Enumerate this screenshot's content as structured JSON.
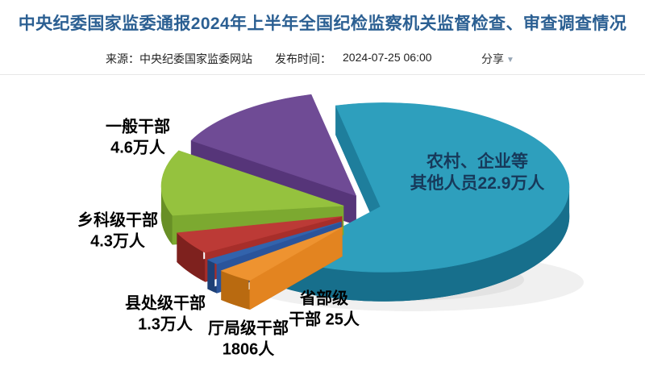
{
  "page": {
    "background": "#ffffff",
    "divider_color": "#e7e7e7"
  },
  "header": {
    "title": "中央纪委国家监委通报2024年上半年全国纪检监察机关监督检查、审查调查情况",
    "title_color": "#2b5f92",
    "meta": {
      "source": "来源：中央纪委国家监委网站",
      "publish_label": "发布时间：",
      "publish_time": "2024-07-25 06:00",
      "share_label": "分享",
      "share_caret": "▼"
    }
  },
  "chart_data": {
    "type": "pie",
    "style": "3d-exploded",
    "title": "",
    "unit": "人",
    "legend_position": "none",
    "labels_on_chart": true,
    "slices": [
      {
        "name": "农村、企业等其他人员",
        "value": 229000,
        "display_value": "22.9万人",
        "label_line1": "农村、企业等",
        "label_line2": "其他人员22.9万人",
        "label_color": "#17395a",
        "color": "#2E9FBD",
        "color_wall": "#1E7E9C",
        "color_dark": "#176F8C",
        "start_angle": 237,
        "end_angle": 465,
        "explode": 6
      },
      {
        "name": "一般干部",
        "value": 46000,
        "display_value": "4.6万人",
        "label_line1": "一般干部",
        "label_line2": "4.6万人",
        "label_color": "#000000",
        "color": "#6F4B95",
        "color_wall": "#563579",
        "color_dark": "#44285E",
        "start_angle": 105,
        "end_angle": 155,
        "explode": 38
      },
      {
        "name": "乡科级干部",
        "value": 43000,
        "display_value": "4.3万人",
        "label_line1": "乡科级干部",
        "label_line2": "4.3万人",
        "label_color": "#000000",
        "color": "#95C23E",
        "color_wall": "#7CA930",
        "color_dark": "#688F26",
        "start_angle": 155,
        "end_angle": 200,
        "explode": 40
      },
      {
        "name": "县处级干部",
        "value": 13000,
        "display_value": "1.3万人",
        "label_line1": "县处级干部",
        "label_line2": "1.3万人",
        "label_color": "#000000",
        "color": "#BC3A36",
        "color_wall": "#A72E2A",
        "color_dark": "#7E211E",
        "start_angle": 205,
        "end_angle": 221,
        "explode": 50
      },
      {
        "name": "厅局级干部",
        "value": 1806,
        "display_value": "1806人",
        "label_line1": "厅局级干部",
        "label_line2": "1806人",
        "label_color": "#000000",
        "color": "#3263AC",
        "color_wall": "#2A549B",
        "color_dark": "#1E4076",
        "start_angle": 222.5,
        "end_angle": 226.5,
        "explode": 60
      },
      {
        "name": "省部级干部",
        "value": 25,
        "display_value": "25人",
        "label_line1": "省部级",
        "label_line2": "干部 25人",
        "label_color": "#000000",
        "color": "#EE9330",
        "color_wall": "#E38420",
        "color_dark": "#B96A10",
        "start_angle": 228,
        "end_angle": 239,
        "explode": 70
      }
    ]
  }
}
